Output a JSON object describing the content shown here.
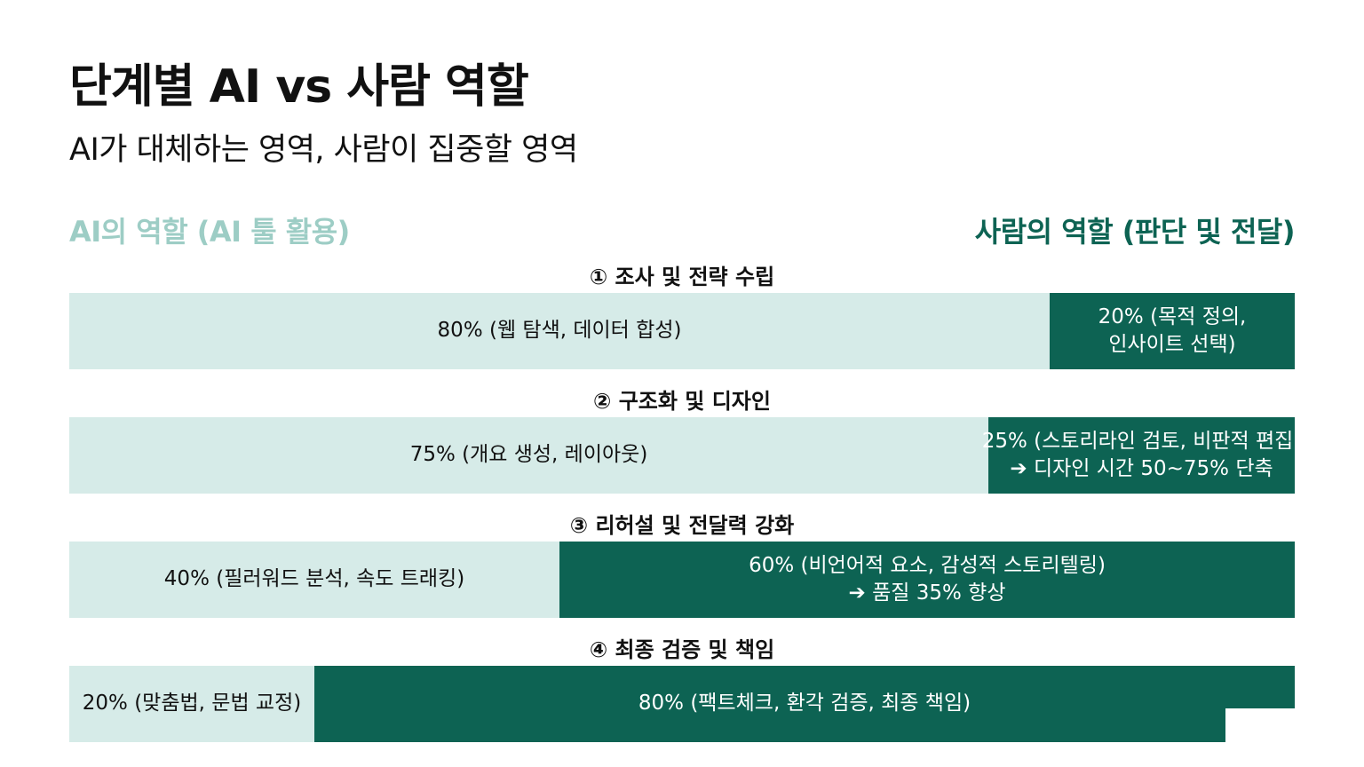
{
  "header": {
    "title": "단계별 AI vs 사람 역할",
    "subtitle": "AI가 대체하는 영역, 사람이 집중할 영역"
  },
  "legend": {
    "ai": "AI의 역할 (AI 툴 활용)",
    "human": "사람의 역할 (판단 및 전달)"
  },
  "colors": {
    "ai": "#d6ebe8",
    "human": "#0d6353",
    "ai_legend": "#9dcdc5"
  },
  "chart_data": {
    "type": "bar",
    "orientation": "horizontal",
    "stacked": true,
    "normalized_to": 100,
    "categories": [
      "① 조사 및 전략 수립",
      "② 구조화 및 디자인",
      "③ 리허설 및 전달력 강화",
      "④ 최종 검증 및 책임"
    ],
    "series": [
      {
        "name": "AI의 역할 (AI 툴 활용)",
        "values": [
          80,
          75,
          40,
          20
        ],
        "labels": [
          "80% (웹 탐색, 데이터 합성)",
          "75% (개요 생성, 레이아웃)",
          "40% (필러워드 분석, 속도 트래킹)",
          "20% (맞춤법, 문법 교정)"
        ]
      },
      {
        "name": "사람의 역할 (판단 및 전달)",
        "values": [
          20,
          25,
          60,
          80
        ],
        "labels": [
          "20% (목적 정의,\n인사이트 선택)",
          "25% (스토리라인 검토, 비판적 편집)\n➔ 디자인 시간 50~75% 단축",
          "60% (비언어적 요소, 감성적 스토리텔링)\n➔ 품질 35% 향상",
          "80% (팩트체크, 환각 검증, 최종 책임)"
        ]
      }
    ],
    "legend_position": "top"
  }
}
